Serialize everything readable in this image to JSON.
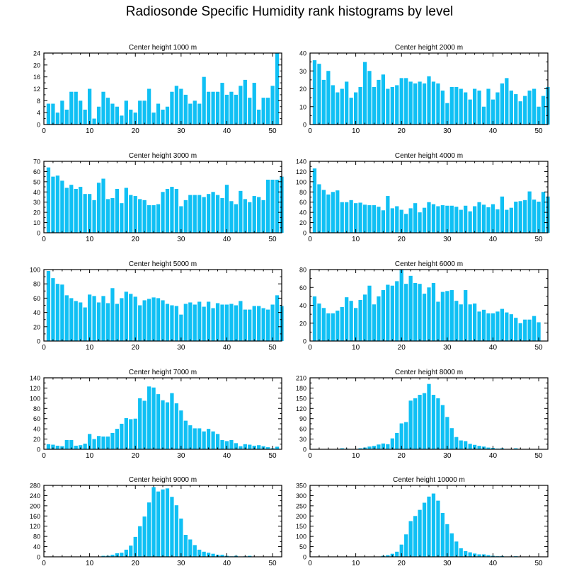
{
  "figure": {
    "title": "Radiosonde Specific Humidity rank histograms by level"
  },
  "colors": {
    "bar": "#10C0F4",
    "axis": "#000000"
  },
  "chart_data": [
    {
      "type": "bar",
      "title": "Center height 1000 m",
      "xlim": [
        0,
        52
      ],
      "ylim": [
        0,
        24
      ],
      "xticks": [
        0,
        10,
        20,
        30,
        40,
        50
      ],
      "yticks": [
        0,
        4,
        8,
        12,
        16,
        20,
        24
      ],
      "values": [
        7,
        7,
        4,
        8,
        5,
        11,
        11,
        8,
        5,
        12,
        2,
        6,
        11,
        9,
        7,
        6,
        3,
        8,
        5,
        4,
        8,
        8,
        12,
        4,
        7,
        5,
        6,
        11,
        13,
        12,
        10,
        7,
        8,
        7,
        16,
        11,
        11,
        11,
        14,
        10,
        11,
        10,
        13,
        15,
        9,
        14,
        5,
        9,
        9,
        13,
        24
      ]
    },
    {
      "type": "bar",
      "title": "Center height 2000 m",
      "xlim": [
        0,
        52
      ],
      "ylim": [
        0,
        40
      ],
      "xticks": [
        0,
        10,
        20,
        30,
        40,
        50
      ],
      "yticks": [
        0,
        10,
        20,
        30,
        40
      ],
      "values": [
        36,
        34,
        25,
        30,
        22,
        18,
        20,
        24,
        15,
        18,
        21,
        35,
        30,
        21,
        25,
        28,
        20,
        21,
        22,
        26,
        26,
        24,
        23,
        24,
        23,
        27,
        24,
        23,
        19,
        12,
        21,
        21,
        20,
        18,
        14,
        20,
        19,
        10,
        20,
        14,
        18,
        23,
        26,
        19,
        17,
        13,
        16,
        19,
        20,
        10,
        16,
        21
      ]
    },
    {
      "type": "bar",
      "title": "Center height 3000 m",
      "xlim": [
        0,
        52
      ],
      "ylim": [
        0,
        70
      ],
      "xticks": [
        0,
        10,
        20,
        30,
        40,
        50
      ],
      "yticks": [
        0,
        10,
        20,
        30,
        40,
        50,
        60,
        70
      ],
      "values": [
        64,
        55,
        56,
        51,
        44,
        47,
        43,
        45,
        38,
        38,
        32,
        49,
        53,
        33,
        34,
        43,
        29,
        44,
        37,
        36,
        33,
        32,
        27,
        27,
        28,
        40,
        43,
        45,
        43,
        26,
        32,
        37,
        37,
        37,
        35,
        38,
        40,
        37,
        34,
        47,
        31,
        28,
        41,
        33,
        30,
        36,
        35,
        32,
        52,
        52,
        52,
        55
      ]
    },
    {
      "type": "bar",
      "title": "Center height 4000 m",
      "xlim": [
        0,
        52
      ],
      "ylim": [
        0,
        140
      ],
      "xticks": [
        0,
        10,
        20,
        30,
        40,
        50
      ],
      "yticks": [
        0,
        20,
        40,
        60,
        80,
        100,
        120,
        140
      ],
      "values": [
        126,
        95,
        84,
        75,
        80,
        83,
        60,
        60,
        64,
        58,
        59,
        55,
        54,
        54,
        51,
        44,
        72,
        48,
        52,
        45,
        37,
        48,
        58,
        40,
        49,
        60,
        56,
        52,
        54,
        53,
        53,
        51,
        45,
        53,
        42,
        52,
        60,
        55,
        50,
        56,
        46,
        71,
        45,
        49,
        61,
        62,
        64,
        81,
        65,
        61,
        80,
        71
      ]
    },
    {
      "type": "bar",
      "title": "Center height 5000 m",
      "xlim": [
        0,
        52
      ],
      "ylim": [
        0,
        100
      ],
      "xticks": [
        0,
        10,
        20,
        30,
        40,
        50
      ],
      "yticks": [
        0,
        20,
        40,
        60,
        80,
        100
      ],
      "values": [
        98,
        88,
        80,
        79,
        64,
        60,
        56,
        54,
        47,
        65,
        63,
        54,
        63,
        53,
        74,
        52,
        60,
        69,
        66,
        62,
        50,
        57,
        59,
        61,
        60,
        57,
        52,
        50,
        49,
        37,
        52,
        54,
        51,
        55,
        48,
        55,
        46,
        53,
        51,
        51,
        52,
        50,
        56,
        44,
        44,
        49,
        49,
        46,
        44,
        51,
        64,
        49
      ]
    },
    {
      "type": "bar",
      "title": "Center height 6000 m",
      "xlim": [
        0,
        52
      ],
      "ylim": [
        0,
        80
      ],
      "xticks": [
        0,
        10,
        20,
        30,
        40,
        50
      ],
      "yticks": [
        0,
        20,
        40,
        60,
        80
      ],
      "values": [
        50,
        42,
        37,
        31,
        31,
        34,
        38,
        49,
        45,
        37,
        46,
        52,
        62,
        41,
        50,
        57,
        63,
        62,
        67,
        80,
        64,
        73,
        65,
        64,
        53,
        60,
        65,
        44,
        55,
        56,
        57,
        45,
        41,
        57,
        41,
        42,
        33,
        35,
        31,
        31,
        33,
        36,
        32,
        30,
        26,
        20,
        24,
        24,
        28,
        21
      ]
    },
    {
      "type": "bar",
      "title": "Center height 7000 m",
      "xlim": [
        0,
        52
      ],
      "ylim": [
        0,
        140
      ],
      "xticks": [
        0,
        10,
        20,
        30,
        40,
        50
      ],
      "yticks": [
        0,
        20,
        40,
        60,
        80,
        100,
        120,
        140
      ],
      "values": [
        10,
        9,
        7,
        6,
        18,
        18,
        7,
        8,
        11,
        30,
        20,
        26,
        25,
        25,
        32,
        40,
        50,
        61,
        59,
        60,
        100,
        95,
        123,
        121,
        108,
        96,
        92,
        110,
        90,
        76,
        56,
        47,
        41,
        41,
        35,
        40,
        35,
        30,
        18,
        16,
        18,
        12,
        6,
        10,
        9,
        7,
        8,
        6,
        4,
        2,
        5
      ]
    },
    {
      "type": "bar",
      "title": "Center height 8000 m",
      "xlim": [
        0,
        52
      ],
      "ylim": [
        0,
        210
      ],
      "xticks": [
        0,
        10,
        20,
        30,
        40,
        50
      ],
      "yticks": [
        0,
        30,
        60,
        90,
        120,
        150,
        180,
        210
      ],
      "values": [
        0,
        0,
        0,
        0,
        0,
        0,
        3,
        2,
        0,
        0,
        3,
        5,
        8,
        10,
        14,
        17,
        15,
        32,
        48,
        76,
        80,
        143,
        150,
        160,
        165,
        192,
        160,
        150,
        130,
        95,
        62,
        36,
        26,
        24,
        16,
        13,
        10,
        8,
        5,
        4,
        2,
        3,
        1,
        1,
        3,
        1,
        1,
        0,
        0,
        0,
        0
      ]
    },
    {
      "type": "bar",
      "title": "Center height 9000 m",
      "xlim": [
        0,
        52
      ],
      "ylim": [
        0,
        280
      ],
      "xticks": [
        0,
        10,
        20,
        30,
        40,
        50
      ],
      "yticks": [
        0,
        40,
        80,
        120,
        160,
        200,
        240,
        280
      ],
      "values": [
        0,
        0,
        0,
        0,
        0,
        0,
        0,
        0,
        0,
        0,
        0,
        0,
        4,
        4,
        8,
        14,
        16,
        28,
        44,
        78,
        120,
        158,
        213,
        273,
        256,
        264,
        268,
        235,
        202,
        150,
        86,
        68,
        46,
        28,
        20,
        16,
        12,
        8,
        8,
        4,
        2,
        4,
        1,
        2,
        4,
        1,
        1,
        0,
        0,
        0,
        0
      ]
    },
    {
      "type": "bar",
      "title": "Center height 10000 m",
      "xlim": [
        0,
        52
      ],
      "ylim": [
        0,
        350
      ],
      "xticks": [
        0,
        10,
        20,
        30,
        40,
        50
      ],
      "yticks": [
        0,
        50,
        100,
        150,
        200,
        250,
        300,
        350
      ],
      "values": [
        0,
        0,
        0,
        0,
        0,
        0,
        0,
        0,
        0,
        0,
        0,
        0,
        0,
        0,
        0,
        5,
        8,
        15,
        25,
        60,
        110,
        175,
        200,
        230,
        265,
        295,
        310,
        275,
        215,
        160,
        115,
        75,
        42,
        28,
        22,
        16,
        12,
        12,
        8,
        5,
        3,
        4,
        1,
        2,
        3,
        1,
        0,
        1,
        0,
        0,
        0
      ]
    }
  ]
}
